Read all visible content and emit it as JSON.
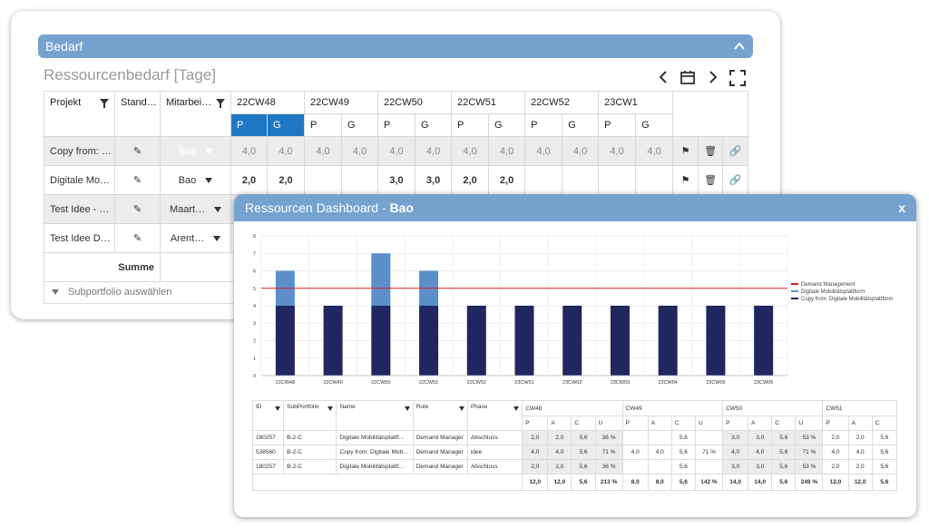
{
  "back": {
    "bar_title": "Bedarf",
    "title": "Ressourcenbedarf [Tage]",
    "columns": {
      "projekt": "Projekt",
      "stand": "Stand…",
      "mitarbeiter": "Mitarbei…"
    },
    "weeks": [
      "22CW48",
      "22CW49",
      "22CW50",
      "22CW51",
      "22CW52",
      "23CW1"
    ],
    "sub": {
      "p": "P",
      "g": "G"
    },
    "rows": [
      {
        "projekt": "Copy from: …",
        "mitarbeiter": "Bao",
        "values": [
          "4,0",
          "4,0",
          "4,0",
          "4,0",
          "4,0",
          "4,0",
          "4,0",
          "4,0",
          "4,0",
          "4,0",
          "4,0",
          "4,0"
        ]
      },
      {
        "projekt": "Digitale Mo…",
        "mitarbeiter": "Bao",
        "values": [
          "2,0",
          "2,0",
          "",
          "",
          "3,0",
          "3,0",
          "2,0",
          "2,0",
          "",
          "",
          "",
          ""
        ]
      },
      {
        "projekt": "Test Idee - …",
        "mitarbeiter": "Maart…"
      },
      {
        "projekt": "Test Idee D…",
        "mitarbeiter": "Arent…"
      }
    ],
    "summe": "Summe",
    "subportfolio": "Subportfolio auswählen"
  },
  "front": {
    "title_prefix": "Ressourcen Dashboard - ",
    "title_name": "Bao",
    "close": "x",
    "chart_data": {
      "type": "bar",
      "categories": [
        "22CW48",
        "22CW49",
        "22CW50",
        "22CW51",
        "22CW52",
        "23CW01",
        "23CW02",
        "23CW03",
        "23CW04",
        "23CW05",
        "23CW06"
      ],
      "series": [
        {
          "name": "Copy from: Digitale Mobilitätsplattform",
          "values": [
            4,
            4,
            4,
            4,
            4,
            4,
            4,
            4,
            4,
            4,
            4
          ],
          "color": "#1f2660"
        },
        {
          "name": "Digitale Mobilitätsplattform",
          "values": [
            2,
            0,
            3,
            2,
            0,
            0,
            0,
            0,
            0,
            0,
            0
          ],
          "color": "#5b8fcc"
        }
      ],
      "line": {
        "name": "Demand Management",
        "value": 5,
        "color": "#e02020"
      },
      "yticks": [
        "0",
        "1",
        "2",
        "3",
        "4",
        "5",
        "6",
        "7",
        "8"
      ],
      "ylim": [
        0,
        8
      ],
      "legend": [
        "Demand Management",
        "Digitale Mobilitätsplattform",
        "Copy from: Digitale Mobilitätsplattform"
      ],
      "legend_colors": [
        "#e02020",
        "#5b8fcc",
        "#1f2660"
      ],
      "legend_position": "right"
    },
    "table": {
      "headers": {
        "id": "ID",
        "sub": "SubPortfolio",
        "name": "Name",
        "role": "Role",
        "phase": "Phase"
      },
      "weeks": [
        "CW48",
        "CW49",
        "CW50",
        "CW51"
      ],
      "sub_cols": [
        "P",
        "A",
        "C",
        "U"
      ],
      "sub_cols_last": [
        "P",
        "A",
        "C"
      ],
      "rows": [
        {
          "id": "180257",
          "sub": "B-2-C",
          "name": "Digitale Mobilitätsplattf…",
          "role": "Demand Manager",
          "phase": "Abschluss",
          "vals": [
            "2,0",
            "2,0",
            "5,6",
            "36 %",
            "",
            "",
            "5,6",
            "",
            "3,0",
            "3,0",
            "5,6",
            "53 %",
            "2,0",
            "2,0",
            "5,6"
          ]
        },
        {
          "id": "538560",
          "sub": "B-2-C",
          "name": "Copy from: Digitale Mob…",
          "role": "Demand Manager",
          "phase": "idee",
          "vals": [
            "4,0",
            "4,0",
            "5,6",
            "71 %",
            "4,0",
            "4,0",
            "5,6",
            "71 %",
            "4,0",
            "4,0",
            "5,6",
            "71 %",
            "4,0",
            "4,0",
            "5,6"
          ]
        },
        {
          "id": "180257",
          "sub": "B-2-C",
          "name": "Digitale Mobilitätsplattf…",
          "role": "Demand Manager",
          "phase": "Abschluss",
          "vals": [
            "2,0",
            "2,0",
            "5,6",
            "36 %",
            "",
            "",
            "5,6",
            "",
            "3,0",
            "3,0",
            "5,6",
            "53 %",
            "2,0",
            "2,0",
            "5,6"
          ]
        }
      ],
      "sum": [
        "12,0",
        "12,0",
        "5,6",
        "213 %",
        "8,0",
        "8,0",
        "5,6",
        "142 %",
        "14,0",
        "14,0",
        "5,6",
        "249 %",
        "12,0",
        "12,0",
        "5,6"
      ]
    }
  }
}
